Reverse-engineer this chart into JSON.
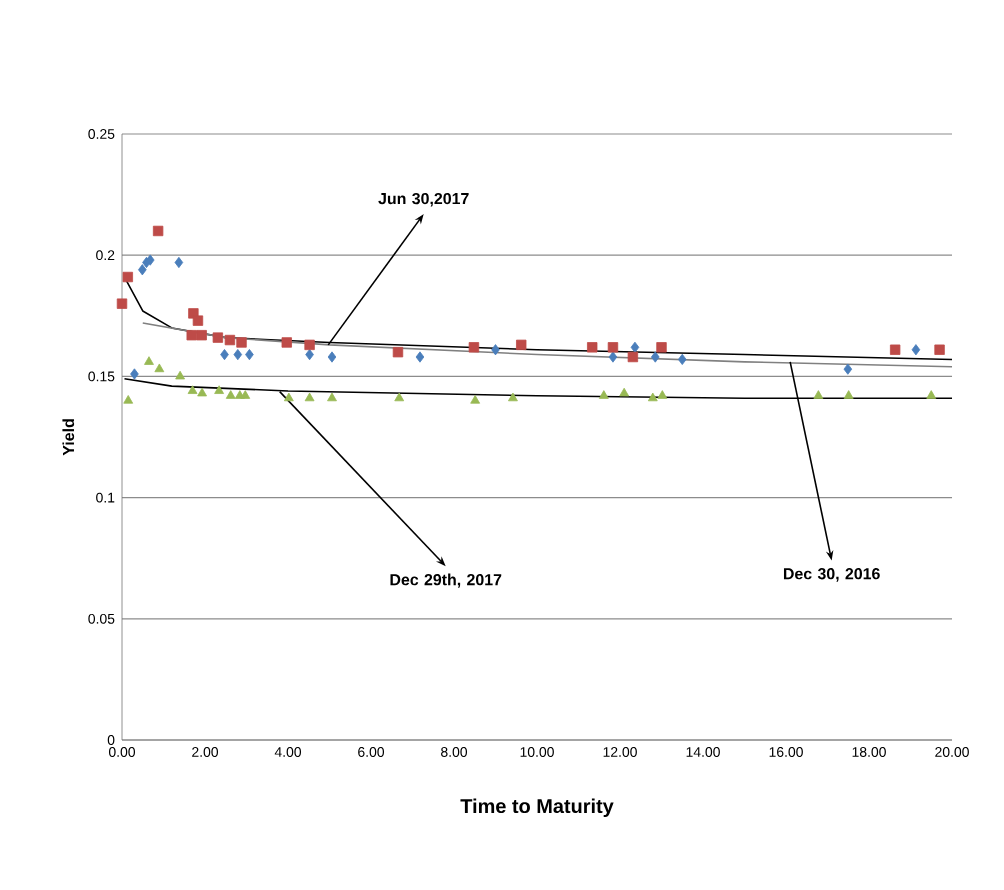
{
  "chart_data": {
    "type": "scatter",
    "xlabel": "Time to Maturity",
    "ylabel": "Yield",
    "xlim": [
      0,
      20
    ],
    "ylim": [
      0,
      0.25
    ],
    "xticks": [
      {
        "value": 0,
        "label": "0.00"
      },
      {
        "value": 2,
        "label": "2.00"
      },
      {
        "value": 4,
        "label": "4.00"
      },
      {
        "value": 6,
        "label": "6.00"
      },
      {
        "value": 8,
        "label": "8.00"
      },
      {
        "value": 10,
        "label": "10.00"
      },
      {
        "value": 12,
        "label": "12.00"
      },
      {
        "value": 14,
        "label": "14.00"
      },
      {
        "value": 16,
        "label": "16.00"
      },
      {
        "value": 18,
        "label": "18.00"
      },
      {
        "value": 20,
        "label": "20.00"
      }
    ],
    "yticks": [
      0,
      0.05,
      0.1,
      0.15,
      0.2,
      0.25
    ],
    "grid": "y",
    "series": [
      {
        "marker": "diamond",
        "color": "#4a7ebb",
        "x": [
          0.3,
          0.49,
          0.59,
          0.68,
          1.37,
          2.47,
          2.79,
          3.07,
          4.52,
          5.06,
          7.18,
          9.0,
          11.83,
          12.36,
          12.85,
          13.5,
          17.49,
          19.13
        ],
        "values": [
          0.151,
          0.194,
          0.197,
          0.198,
          0.197,
          0.159,
          0.159,
          0.159,
          0.159,
          0.158,
          0.158,
          0.161,
          0.158,
          0.162,
          0.158,
          0.157,
          0.153,
          0.161
        ]
      },
      {
        "marker": "square",
        "color": "#be4b48",
        "x": [
          0,
          0.14,
          0.87,
          1.72,
          1.83,
          1.68,
          1.92,
          2.31,
          2.6,
          2.88,
          3.97,
          4.52,
          6.65,
          8.48,
          9.62,
          11.33,
          11.83,
          12.31,
          13.0,
          18.63,
          19.7
        ],
        "values": [
          0.18,
          0.191,
          0.21,
          0.176,
          0.173,
          0.167,
          0.167,
          0.166,
          0.165,
          0.164,
          0.164,
          0.163,
          0.16,
          0.162,
          0.163,
          0.162,
          0.162,
          0.158,
          0.162,
          0.161,
          0.161
        ]
      },
      {
        "marker": "triangle",
        "color": "#98b954",
        "x": [
          0.15,
          0.65,
          0.9,
          1.4,
          1.7,
          1.93,
          2.34,
          2.62,
          2.84,
          2.97,
          4.02,
          4.52,
          5.06,
          6.68,
          8.51,
          9.42,
          11.61,
          12.1,
          12.79,
          13.02,
          16.78,
          17.51,
          19.5
        ],
        "values": [
          0.14,
          0.156,
          0.153,
          0.15,
          0.144,
          0.143,
          0.144,
          0.142,
          0.142,
          0.142,
          0.141,
          0.141,
          0.141,
          0.141,
          0.14,
          0.141,
          0.142,
          0.143,
          0.141,
          0.142,
          0.142,
          0.142,
          0.142
        ]
      },
      {
        "type": "line",
        "marker": "none",
        "line_style": "solid",
        "color": "#000000",
        "x": [
          0.06,
          0.5,
          1.2,
          2.5,
          5,
          10,
          15,
          20
        ],
        "values": [
          0.191,
          0.177,
          0.17,
          0.166,
          0.164,
          0.161,
          0.159,
          0.157
        ]
      },
      {
        "type": "line",
        "marker": "none",
        "line_style": "solid",
        "color": "#808080",
        "x": [
          0.5,
          2.5,
          5,
          10,
          15,
          20
        ],
        "values": [
          0.172,
          0.166,
          0.163,
          0.159,
          0.156,
          0.154
        ]
      },
      {
        "type": "line",
        "marker": "none",
        "line_style": "solid",
        "color": "#000000",
        "x": [
          0.06,
          1.2,
          4,
          10,
          15,
          20
        ],
        "values": [
          0.149,
          0.146,
          0.144,
          0.142,
          0.141,
          0.141
        ]
      }
    ],
    "annotations": [
      {
        "text": "Jun 30,2017",
        "x": 4.97,
        "y": 0.163
      },
      {
        "text": "Dec 29th, 2017",
        "x": 3.8,
        "y": 0.1437
      },
      {
        "text": "Dec 30, 2016",
        "x": 16.1,
        "y": 0.156
      }
    ]
  }
}
